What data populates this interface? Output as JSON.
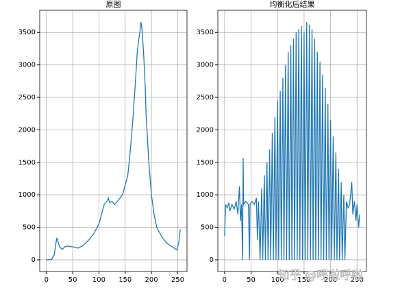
{
  "chart_data": [
    {
      "type": "line",
      "title": "原图",
      "color": "#1f77b4",
      "grid": true,
      "x": [
        0,
        10,
        15,
        18,
        20,
        22,
        25,
        30,
        35,
        40,
        50,
        60,
        70,
        80,
        90,
        100,
        105,
        110,
        115,
        118,
        120,
        125,
        130,
        135,
        140,
        145,
        150,
        155,
        160,
        165,
        170,
        173,
        176,
        178,
        180,
        182,
        185,
        188,
        190,
        195,
        200,
        205,
        210,
        220,
        230,
        240,
        248,
        252,
        255
      ],
      "values": [
        0,
        5,
        80,
        250,
        340,
        280,
        200,
        160,
        200,
        210,
        200,
        180,
        220,
        300,
        400,
        550,
        700,
        850,
        900,
        950,
        880,
        900,
        850,
        900,
        950,
        1000,
        1150,
        1300,
        1700,
        2200,
        2800,
        3200,
        3400,
        3500,
        3660,
        3550,
        3200,
        2700,
        2200,
        1500,
        1000,
        700,
        500,
        350,
        250,
        200,
        150,
        250,
        470
      ],
      "xlim": [
        -12.75,
        267.75
      ],
      "xticks": [
        0,
        50,
        100,
        150,
        200,
        250
      ],
      "ylim": [
        -180,
        3840
      ],
      "yticks": [
        0,
        500,
        1000,
        1500,
        2000,
        2500,
        3000,
        3500
      ]
    },
    {
      "type": "line",
      "title": "均衡化后结果",
      "color": "#1f77b4",
      "grid": true,
      "x": [
        0,
        2,
        5,
        8,
        10,
        14,
        18,
        22,
        25,
        28,
        30,
        32,
        34,
        35,
        36,
        40,
        45,
        47,
        48,
        52,
        56,
        60,
        62,
        64,
        67,
        70,
        72,
        75,
        77,
        80,
        82,
        85,
        87,
        90,
        92,
        95,
        97,
        100,
        102,
        105,
        107,
        110,
        112,
        115,
        117,
        120,
        122,
        125,
        127,
        130,
        132,
        135,
        137,
        140,
        142,
        145,
        147,
        150,
        152,
        155,
        157,
        160,
        162,
        165,
        167,
        170,
        172,
        175,
        177,
        180,
        182,
        185,
        187,
        190,
        192,
        195,
        197,
        200,
        202,
        205,
        207,
        210,
        212,
        215,
        217,
        220,
        222,
        225,
        227,
        230,
        233,
        236,
        240,
        242,
        245,
        248,
        250,
        253,
        255
      ],
      "values": [
        370,
        850,
        800,
        880,
        750,
        850,
        780,
        900,
        700,
        1130,
        600,
        850,
        0,
        1570,
        850,
        900,
        850,
        0,
        850,
        900,
        850,
        950,
        300,
        900,
        0,
        1100,
        0,
        1300,
        0,
        1500,
        0,
        1700,
        0,
        1950,
        0,
        2200,
        0,
        2450,
        0,
        2600,
        0,
        2800,
        0,
        3000,
        0,
        3200,
        0,
        3300,
        0,
        3400,
        0,
        3500,
        0,
        3550,
        0,
        3600,
        0,
        3500,
        0,
        3660,
        0,
        3620,
        0,
        3550,
        0,
        3400,
        0,
        3200,
        0,
        3050,
        0,
        2850,
        0,
        2650,
        0,
        2400,
        0,
        2150,
        0,
        1900,
        0,
        1650,
        0,
        1400,
        0,
        1200,
        0,
        1000,
        0,
        900,
        800,
        850,
        1200,
        700,
        900,
        600,
        850,
        500,
        700
      ],
      "xlim": [
        -12.75,
        267.75
      ],
      "xticks": [
        0,
        50,
        100,
        150,
        200,
        250
      ],
      "ylim": [
        -180,
        3840
      ],
      "yticks": [
        0,
        500,
        1000,
        1500,
        2000,
        2500,
        3000,
        3500
      ]
    }
  ],
  "watermark": "知乎 @呼啦呼啦"
}
